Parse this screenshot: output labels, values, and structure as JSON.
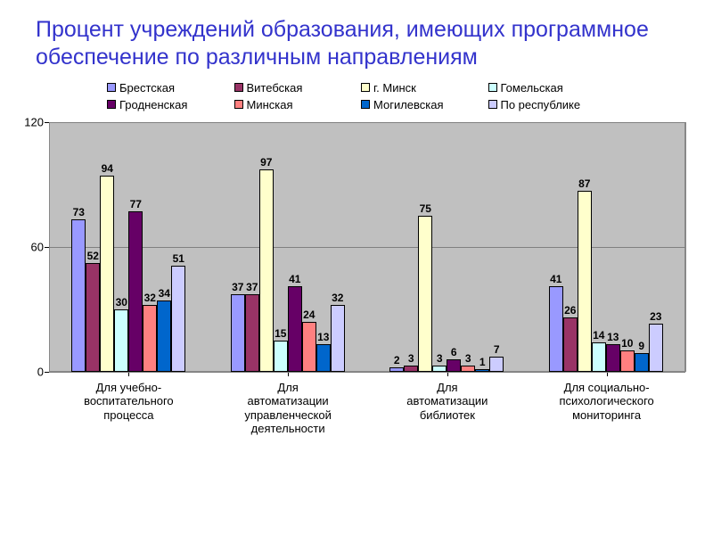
{
  "title": "Процент учреждений образования, имеющих программное обеспечение по различным направлениям",
  "chart": {
    "type": "bar",
    "ylim": [
      0,
      120
    ],
    "yticks": [
      0,
      60,
      120
    ],
    "background_color": "#c0c0c0",
    "grid_color": "#808080",
    "bar_border_color": "#000000",
    "label_fontsize": 12,
    "series": [
      {
        "name": "Брестская",
        "color": "#9999ff"
      },
      {
        "name": "Витебская",
        "color": "#993366"
      },
      {
        "name": "г. Минск",
        "color": "#ffffcc"
      },
      {
        "name": "Гомельская",
        "color": "#ccffff"
      },
      {
        "name": "Гродненская",
        "color": "#660066"
      },
      {
        "name": "Минская",
        "color": "#ff8080"
      },
      {
        "name": "Могилевская",
        "color": "#0066cc"
      },
      {
        "name": "По республике",
        "color": "#ccccff"
      }
    ],
    "categories": [
      {
        "label": "Для учебно-\nвоспитательного\nпроцесса",
        "values": [
          73,
          52,
          94,
          30,
          77,
          32,
          34,
          51
        ]
      },
      {
        "label": "Для\nавтоматизации\nуправленческой\nдеятельности",
        "values": [
          37,
          37,
          97,
          15,
          41,
          24,
          13,
          32
        ]
      },
      {
        "label": "Для\nавтоматизации\nбиблиотек",
        "values": [
          2,
          3,
          75,
          3,
          6,
          3,
          1,
          7
        ]
      },
      {
        "label": "Для социально-\nпсихологического\nмониторинга",
        "values": [
          41,
          26,
          87,
          14,
          13,
          10,
          9,
          23
        ]
      }
    ]
  }
}
